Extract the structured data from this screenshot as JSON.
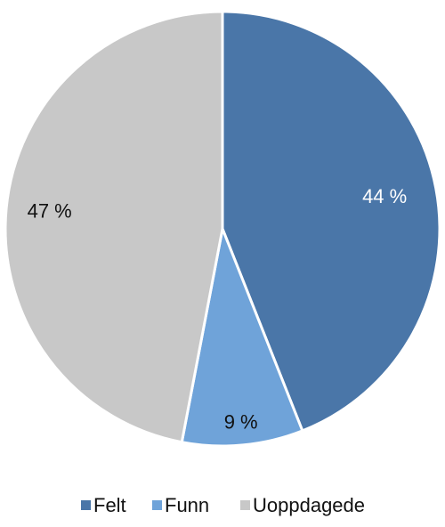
{
  "chart_data": {
    "type": "pie",
    "categories": [
      "Felt",
      "Funn",
      "Uoppdagede"
    ],
    "values": [
      44,
      9,
      47
    ],
    "value_labels": [
      "44 %",
      "9 %",
      "47 %"
    ],
    "colors": [
      "#4a76a8",
      "#6fa3d9",
      "#c8c8c8"
    ]
  }
}
